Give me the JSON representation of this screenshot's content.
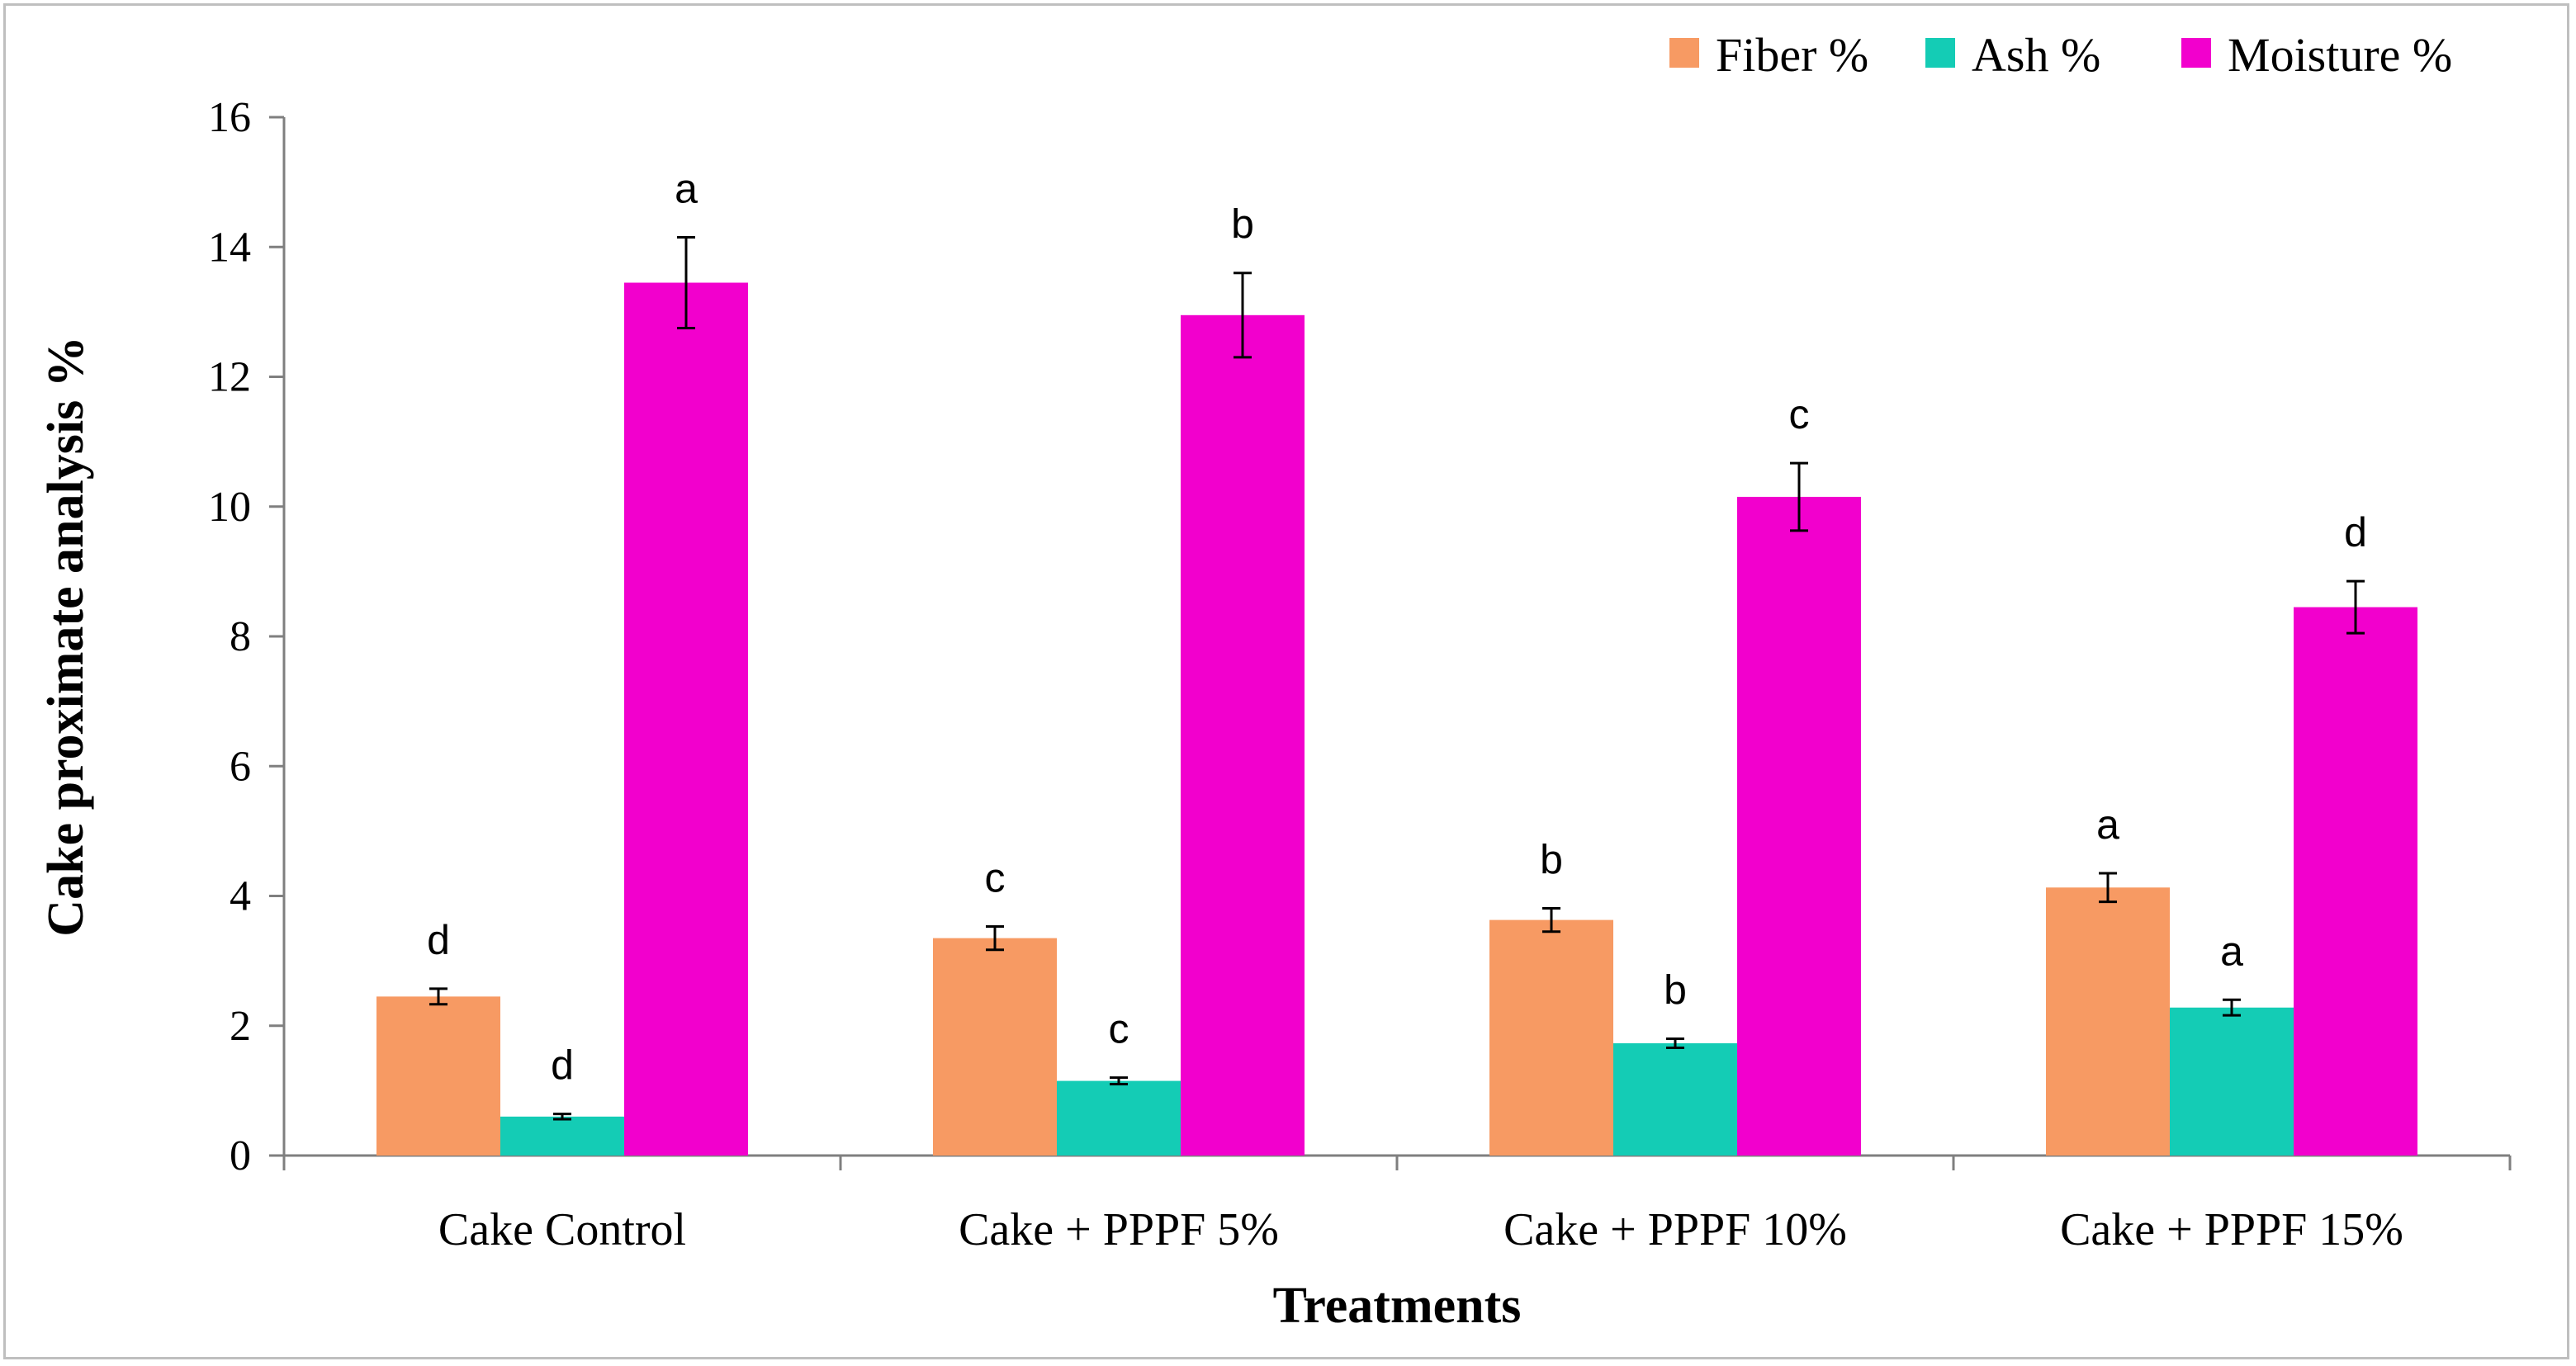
{
  "chart_data": {
    "type": "bar",
    "xlabel": "Treatments",
    "ylabel": "Cake proximate analysis %",
    "ylim": [
      0,
      16
    ],
    "yticks": [
      0,
      2,
      4,
      6,
      8,
      10,
      12,
      14,
      16
    ],
    "categories": [
      "Cake Control",
      "Cake + PPPF 5%",
      "Cake + PPPF 10%",
      "Cake + PPPF 15%"
    ],
    "legend_position": "top-right",
    "series": [
      {
        "name": "Fiber %",
        "color": "#F79A63",
        "values": [
          2.45,
          3.35,
          3.63,
          4.13
        ],
        "errors": [
          0.12,
          0.18,
          0.18,
          0.22
        ],
        "letters": [
          "d",
          "c",
          "b",
          "a"
        ]
      },
      {
        "name": "Ash %",
        "color": "#14CCB5",
        "values": [
          0.6,
          1.15,
          1.73,
          2.28
        ],
        "errors": [
          0.04,
          0.05,
          0.07,
          0.12
        ],
        "letters": [
          "d",
          "c",
          "b",
          "a"
        ]
      },
      {
        "name": "Moisture %",
        "color": "#F200CD",
        "values": [
          13.45,
          12.95,
          10.15,
          8.45
        ],
        "errors": [
          0.7,
          0.65,
          0.52,
          0.4
        ],
        "letters": [
          "a",
          "b",
          "c",
          "d"
        ]
      }
    ]
  }
}
